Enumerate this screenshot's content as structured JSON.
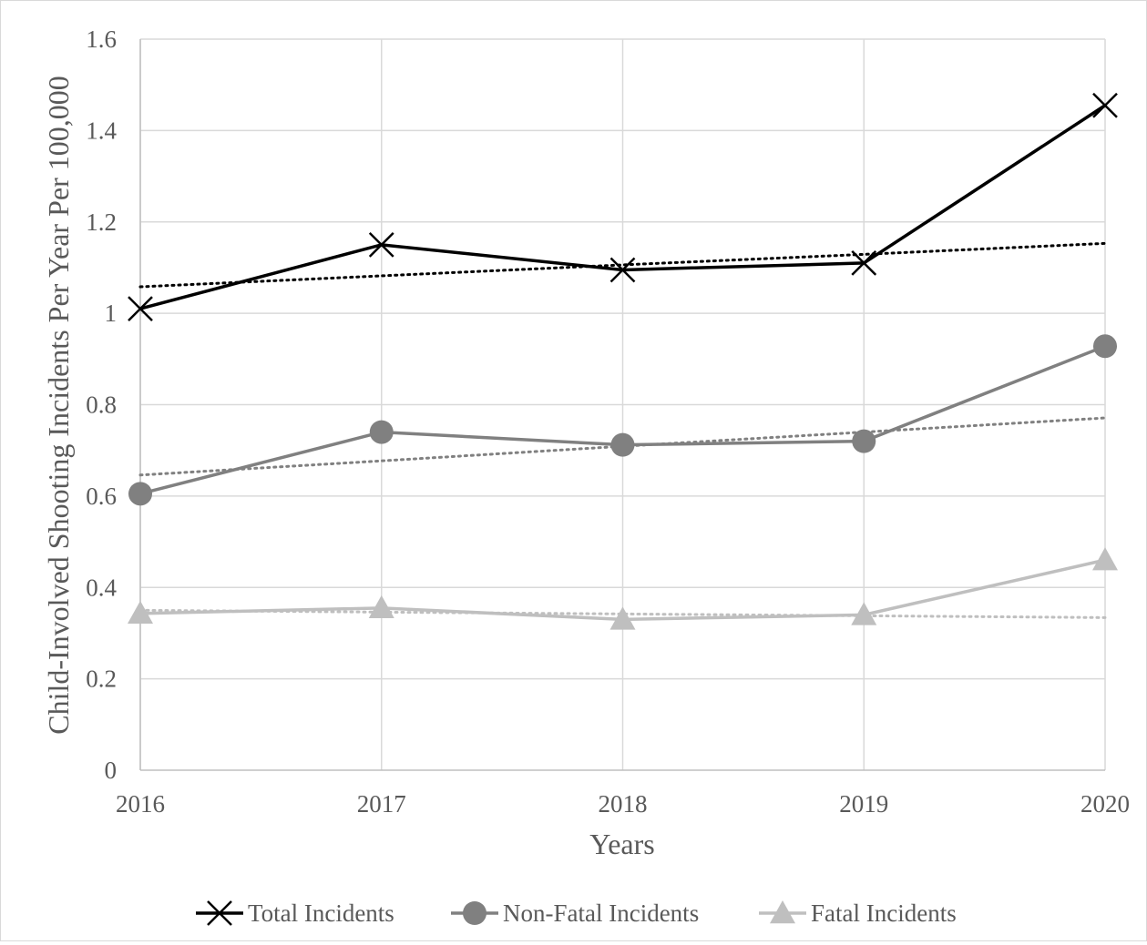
{
  "chart_data": {
    "type": "line",
    "title": "",
    "xlabel": "Years",
    "ylabel": "Child-Involved Shooting Incidents Per Year Per 100,000",
    "categories": [
      "2016",
      "2017",
      "2018",
      "2019",
      "2020"
    ],
    "ylim": [
      0,
      1.6
    ],
    "yticks": [
      0,
      0.2,
      0.4,
      0.6,
      0.8,
      1,
      1.2,
      1.4,
      1.6
    ],
    "ytick_labels": [
      "0",
      "0.2",
      "0.4",
      "0.6",
      "0.8",
      "1",
      "1.2",
      "1.4",
      "1.6"
    ],
    "grid": true,
    "legend_position": "bottom",
    "series": [
      {
        "name": "Total Incidents",
        "values": [
          1.01,
          1.15,
          1.095,
          1.11,
          1.455
        ],
        "color": "#000000",
        "marker": "x",
        "trendline": [
          1.058,
          1.082,
          1.106,
          1.129,
          1.153
        ]
      },
      {
        "name": "Non-Fatal Incidents",
        "values": [
          0.605,
          0.74,
          0.712,
          0.72,
          0.928
        ],
        "color": "#808080",
        "marker": "circle",
        "trendline": [
          0.646,
          0.677,
          0.709,
          0.74,
          0.771
        ]
      },
      {
        "name": "Fatal Incidents",
        "values": [
          0.343,
          0.355,
          0.33,
          0.34,
          0.46
        ],
        "color": "#bfbfbf",
        "marker": "triangle",
        "trendline": [
          0.35,
          0.346,
          0.342,
          0.338,
          0.334
        ]
      }
    ]
  }
}
